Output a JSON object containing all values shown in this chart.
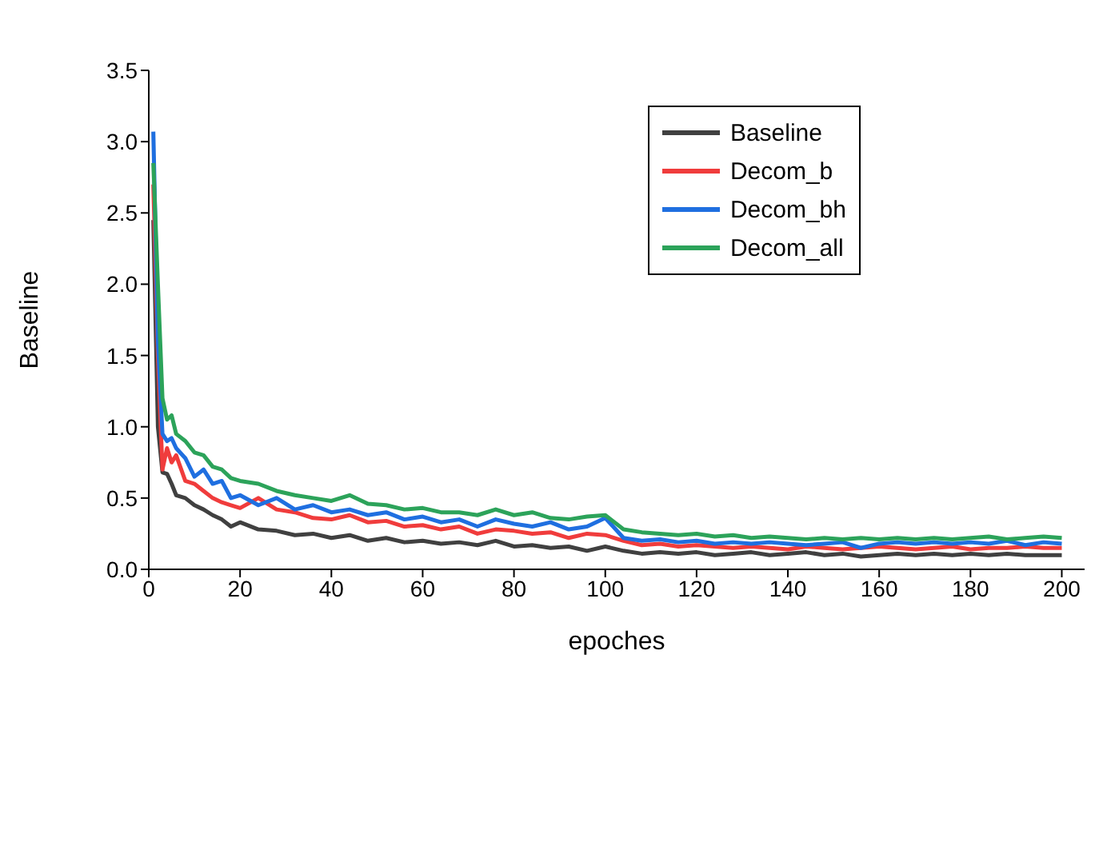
{
  "chart_data": {
    "type": "line",
    "xlabel": "epoches",
    "ylabel": "Baseline",
    "x": [
      1,
      2,
      3,
      4,
      5,
      6,
      8,
      10,
      12,
      14,
      16,
      18,
      20,
      24,
      28,
      32,
      36,
      40,
      44,
      48,
      52,
      56,
      60,
      64,
      68,
      72,
      76,
      80,
      84,
      88,
      92,
      96,
      100,
      104,
      108,
      112,
      116,
      120,
      124,
      128,
      132,
      136,
      140,
      144,
      148,
      152,
      156,
      160,
      164,
      168,
      172,
      176,
      180,
      184,
      188,
      192,
      196,
      200
    ],
    "series": [
      {
        "name": "Baseline",
        "color": "#404040",
        "values": [
          2.45,
          1.0,
          0.68,
          0.67,
          0.6,
          0.52,
          0.5,
          0.45,
          0.42,
          0.38,
          0.35,
          0.3,
          0.33,
          0.28,
          0.27,
          0.24,
          0.25,
          0.22,
          0.24,
          0.2,
          0.22,
          0.19,
          0.2,
          0.18,
          0.19,
          0.17,
          0.2,
          0.16,
          0.17,
          0.15,
          0.16,
          0.13,
          0.16,
          0.13,
          0.11,
          0.12,
          0.11,
          0.12,
          0.1,
          0.11,
          0.12,
          0.1,
          0.11,
          0.12,
          0.1,
          0.11,
          0.09,
          0.1,
          0.11,
          0.1,
          0.11,
          0.1,
          0.11,
          0.1,
          0.11,
          0.1,
          0.1,
          0.1
        ]
      },
      {
        "name": "Decom_b",
        "color": "#f03c3c",
        "values": [
          2.7,
          1.5,
          0.7,
          0.85,
          0.75,
          0.8,
          0.62,
          0.6,
          0.55,
          0.5,
          0.47,
          0.45,
          0.43,
          0.5,
          0.42,
          0.4,
          0.36,
          0.35,
          0.38,
          0.33,
          0.34,
          0.3,
          0.31,
          0.28,
          0.3,
          0.25,
          0.28,
          0.27,
          0.25,
          0.26,
          0.22,
          0.25,
          0.24,
          0.2,
          0.17,
          0.18,
          0.16,
          0.17,
          0.16,
          0.15,
          0.16,
          0.15,
          0.14,
          0.16,
          0.15,
          0.14,
          0.15,
          0.16,
          0.15,
          0.14,
          0.15,
          0.16,
          0.14,
          0.15,
          0.15,
          0.16,
          0.15,
          0.15
        ]
      },
      {
        "name": "Decom_bh",
        "color": "#1f6fe0",
        "values": [
          3.07,
          1.6,
          0.95,
          0.9,
          0.92,
          0.85,
          0.78,
          0.65,
          0.7,
          0.6,
          0.62,
          0.5,
          0.52,
          0.45,
          0.5,
          0.42,
          0.45,
          0.4,
          0.42,
          0.38,
          0.4,
          0.35,
          0.37,
          0.33,
          0.35,
          0.3,
          0.35,
          0.32,
          0.3,
          0.33,
          0.28,
          0.3,
          0.36,
          0.22,
          0.2,
          0.21,
          0.19,
          0.2,
          0.18,
          0.19,
          0.18,
          0.19,
          0.18,
          0.17,
          0.18,
          0.19,
          0.15,
          0.18,
          0.19,
          0.18,
          0.19,
          0.18,
          0.19,
          0.18,
          0.2,
          0.17,
          0.19,
          0.18
        ]
      },
      {
        "name": "Decom_all",
        "color": "#2ca35a",
        "values": [
          2.85,
          2.0,
          1.2,
          1.05,
          1.08,
          0.95,
          0.9,
          0.82,
          0.8,
          0.72,
          0.7,
          0.64,
          0.62,
          0.6,
          0.55,
          0.52,
          0.5,
          0.48,
          0.52,
          0.46,
          0.45,
          0.42,
          0.43,
          0.4,
          0.4,
          0.38,
          0.42,
          0.38,
          0.4,
          0.36,
          0.35,
          0.37,
          0.38,
          0.28,
          0.26,
          0.25,
          0.24,
          0.25,
          0.23,
          0.24,
          0.22,
          0.23,
          0.22,
          0.21,
          0.22,
          0.21,
          0.22,
          0.21,
          0.22,
          0.21,
          0.22,
          0.21,
          0.22,
          0.23,
          0.21,
          0.22,
          0.23,
          0.22
        ]
      }
    ],
    "xlim": [
      0,
      205
    ],
    "xticks": [
      0,
      20,
      40,
      60,
      80,
      100,
      120,
      140,
      160,
      180,
      200
    ],
    "ylim": [
      0,
      3.5
    ],
    "yticks": [
      {
        "value": 0,
        "label": "0.0"
      },
      0.5,
      {
        "value": 1,
        "label": "1.0"
      },
      1.5,
      {
        "value": 2,
        "label": "2.0"
      },
      2.5,
      {
        "value": 3,
        "label": "3.0"
      },
      3.5
    ],
    "legend": "top right",
    "grid": false,
    "marker": "none",
    "line_style": "solid"
  }
}
